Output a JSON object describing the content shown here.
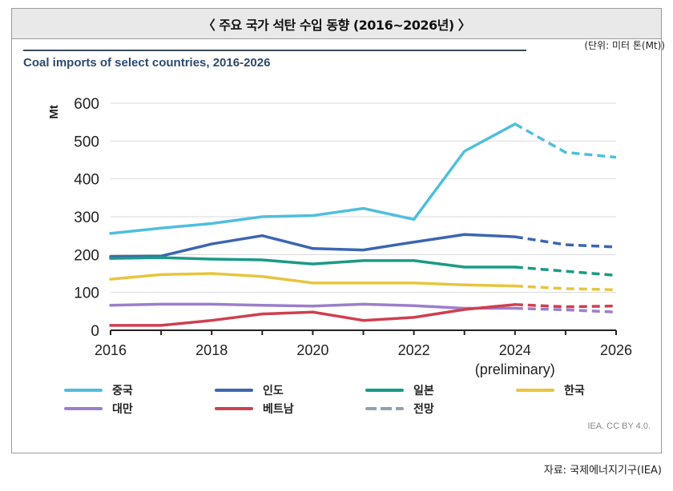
{
  "header": {
    "title": "〈 주요 국가 석탄 수입 동향 (2016~2026년) 〉"
  },
  "unit_label": "(단위: 미터 톤(Mt))",
  "credit": "IEA. CC BY 4.0.",
  "source": "자료: 국제에너지기구(IEA)",
  "chart_data": {
    "type": "line",
    "title": "Coal imports of select countries, 2016-2026",
    "xlabel": "",
    "ylabel": "Mt",
    "x": [
      2016,
      2017,
      2018,
      2019,
      2020,
      2021,
      2022,
      2023,
      2024,
      2025,
      2026
    ],
    "x_tick_labels": [
      "2016",
      "2018",
      "2020",
      "2022",
      "2024",
      "2026"
    ],
    "x_tick_values": [
      2016,
      2018,
      2020,
      2022,
      2024,
      2026
    ],
    "x_annotation": {
      "at": 2024,
      "text": "(preliminary)"
    },
    "ylim": [
      0,
      600
    ],
    "y_ticks": [
      0,
      100,
      200,
      300,
      400,
      500,
      600
    ],
    "grid": true,
    "forecast_from": 2024,
    "legend_placement": "bottom",
    "series": [
      {
        "name": "중국",
        "color": "#4fbfdc",
        "values": [
          256,
          270,
          282,
          300,
          303,
          322,
          293,
          473,
          545,
          470,
          457
        ]
      },
      {
        "name": "인도",
        "color": "#3c66b0",
        "values": [
          195,
          196,
          228,
          250,
          216,
          212,
          233,
          253,
          247,
          226,
          220
        ]
      },
      {
        "name": "일본",
        "color": "#1a9a86",
        "values": [
          190,
          192,
          188,
          186,
          175,
          184,
          184,
          167,
          167,
          156,
          145
        ]
      },
      {
        "name": "한국",
        "color": "#e7c53e",
        "values": [
          135,
          147,
          150,
          142,
          125,
          125,
          125,
          120,
          117,
          110,
          107
        ]
      },
      {
        "name": "대만",
        "color": "#9b7fca",
        "values": [
          66,
          69,
          69,
          66,
          64,
          69,
          65,
          58,
          58,
          54,
          48
        ]
      },
      {
        "name": "베트남",
        "color": "#cf3f4f",
        "values": [
          13,
          13,
          26,
          43,
          48,
          26,
          34,
          55,
          68,
          62,
          64
        ]
      }
    ],
    "forecast_legend": {
      "name": "전망",
      "color": "#8fa2b2"
    }
  }
}
